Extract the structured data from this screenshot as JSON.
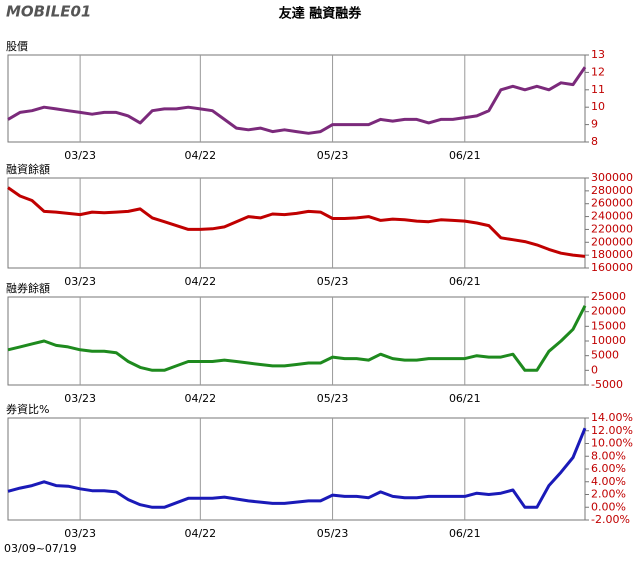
{
  "header": {
    "logo": "MOBILE01",
    "title": "友達 融資融券"
  },
  "footer": "03/09~07/19",
  "chart_data": [
    {
      "type": "line",
      "title": "股價",
      "color": "#7b2a7b",
      "grid": true,
      "categories": [
        null,
        null,
        null,
        null,
        null,
        null,
        "03/23",
        null,
        null,
        null,
        null,
        null,
        null,
        null,
        null,
        null,
        "04/22",
        null,
        null,
        null,
        null,
        null,
        null,
        null,
        null,
        null,
        null,
        "05/23",
        null,
        null,
        null,
        null,
        null,
        null,
        null,
        null,
        null,
        null,
        "06/21",
        null,
        null,
        null,
        null,
        null,
        null,
        null,
        null,
        null,
        null
      ],
      "values": [
        9.3,
        9.7,
        9.8,
        10.0,
        9.9,
        9.8,
        9.7,
        9.6,
        9.7,
        9.7,
        9.5,
        9.1,
        9.8,
        9.9,
        9.9,
        10.0,
        9.9,
        9.8,
        9.3,
        8.8,
        8.7,
        8.8,
        8.6,
        8.7,
        8.6,
        8.5,
        8.6,
        9.0,
        9.0,
        9.0,
        9.0,
        9.3,
        9.2,
        9.3,
        9.3,
        9.1,
        9.3,
        9.3,
        9.4,
        9.5,
        9.8,
        11.0,
        11.2,
        11.0,
        11.2,
        11.0,
        11.4,
        11.3,
        12.3
      ],
      "ylim": [
        8,
        13
      ],
      "yticks": [
        8,
        9,
        10,
        11,
        12,
        13
      ]
    },
    {
      "type": "line",
      "title": "融資餘額",
      "color": "#c00000",
      "grid": true,
      "categories": [
        null,
        null,
        null,
        null,
        null,
        null,
        "03/23",
        null,
        null,
        null,
        null,
        null,
        null,
        null,
        null,
        null,
        "04/22",
        null,
        null,
        null,
        null,
        null,
        null,
        null,
        null,
        null,
        null,
        "05/23",
        null,
        null,
        null,
        null,
        null,
        null,
        null,
        null,
        null,
        null,
        "06/21",
        null,
        null,
        null,
        null,
        null,
        null,
        null,
        null,
        null,
        null
      ],
      "values": [
        285000,
        272000,
        265000,
        248000,
        247000,
        245000,
        243000,
        247000,
        246000,
        247000,
        248000,
        252000,
        238000,
        232000,
        226000,
        220000,
        220000,
        221000,
        224000,
        232000,
        240000,
        238000,
        244000,
        243000,
        245000,
        248000,
        247000,
        237000,
        237000,
        238000,
        240000,
        234000,
        236000,
        235000,
        233000,
        232000,
        235000,
        234000,
        233000,
        230000,
        226000,
        207000,
        204000,
        201000,
        196000,
        189000,
        183000,
        180000,
        178000
      ],
      "ylim": [
        160000,
        300000
      ],
      "yticks": [
        160000,
        180000,
        200000,
        220000,
        240000,
        260000,
        280000,
        300000
      ]
    },
    {
      "type": "line",
      "title": "融券餘額",
      "color": "#1e8a1e",
      "grid": true,
      "categories": [
        null,
        null,
        null,
        null,
        null,
        null,
        "03/23",
        null,
        null,
        null,
        null,
        null,
        null,
        null,
        null,
        null,
        "04/22",
        null,
        null,
        null,
        null,
        null,
        null,
        null,
        null,
        null,
        null,
        "05/23",
        null,
        null,
        null,
        null,
        null,
        null,
        null,
        null,
        null,
        null,
        "06/21",
        null,
        null,
        null,
        null,
        null,
        null,
        null,
        null,
        null,
        null
      ],
      "values": [
        7000,
        8000,
        9000,
        10000,
        8500,
        8000,
        7000,
        6500,
        6500,
        6000,
        3000,
        1000,
        0,
        0,
        1500,
        3000,
        3000,
        3000,
        3500,
        3000,
        2500,
        2000,
        1500,
        1500,
        2000,
        2500,
        2500,
        4500,
        4000,
        4000,
        3500,
        5500,
        4000,
        3500,
        3500,
        4000,
        4000,
        4000,
        4000,
        5000,
        4500,
        4500,
        5500,
        0,
        0,
        6500,
        10000,
        14000,
        22000
      ],
      "ylim": [
        -5000,
        25000
      ],
      "yticks": [
        -5000,
        0,
        5000,
        10000,
        15000,
        20000,
        25000
      ]
    },
    {
      "type": "line",
      "title": "券資比%",
      "color": "#1a1ab8",
      "grid": true,
      "categories": [
        null,
        null,
        null,
        null,
        null,
        null,
        "03/23",
        null,
        null,
        null,
        null,
        null,
        null,
        null,
        null,
        null,
        "04/22",
        null,
        null,
        null,
        null,
        null,
        null,
        null,
        null,
        null,
        null,
        "05/23",
        null,
        null,
        null,
        null,
        null,
        null,
        null,
        null,
        null,
        null,
        "06/21",
        null,
        null,
        null,
        null,
        null,
        null,
        null,
        null,
        null,
        null
      ],
      "values": [
        2.5,
        3.0,
        3.4,
        4.0,
        3.4,
        3.3,
        2.9,
        2.6,
        2.6,
        2.4,
        1.2,
        0.4,
        0,
        0,
        0.7,
        1.4,
        1.4,
        1.4,
        1.6,
        1.3,
        1.0,
        0.8,
        0.6,
        0.6,
        0.8,
        1.0,
        1.0,
        1.9,
        1.7,
        1.7,
        1.5,
        2.4,
        1.7,
        1.5,
        1.5,
        1.7,
        1.7,
        1.7,
        1.7,
        2.2,
        2.0,
        2.2,
        2.7,
        0,
        0,
        3.4,
        5.5,
        7.8,
        12.4
      ],
      "ylim": [
        -2,
        14
      ],
      "yticks": [
        {
          "value": -2,
          "label": "-2.00%"
        },
        {
          "value": 0,
          "label": "0.00%"
        },
        {
          "value": 2,
          "label": "2.00%"
        },
        {
          "value": 4,
          "label": "4.00%"
        },
        {
          "value": 6,
          "label": "6.00%"
        },
        {
          "value": 8,
          "label": "8.00%"
        },
        {
          "value": 10,
          "label": "10.00%"
        },
        {
          "value": 12,
          "label": "12.00%"
        },
        {
          "value": 14,
          "label": "14.00%"
        }
      ]
    }
  ]
}
